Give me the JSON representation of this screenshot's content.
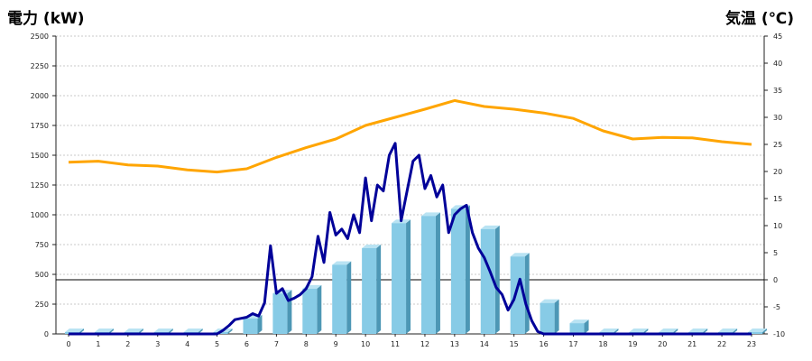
{
  "chart_data": {
    "type": "bar",
    "title_left": "電力 (kW)",
    "title_right": "気温 (℃)",
    "colors": {
      "left_title": "#1a5a96",
      "right_title": "#ee8a1e",
      "bar_front": "#87cbe6",
      "bar_side": "#4d97b5",
      "bar_top": "#b9e3f3",
      "power_line": "#000099",
      "temp_line": "#ffa500",
      "grid": "#c8c8c8"
    },
    "x": [
      "0",
      "1",
      "2",
      "3",
      "4",
      "5",
      "6",
      "7",
      "8",
      "9",
      "10",
      "11",
      "12",
      "13",
      "14",
      "15",
      "16",
      "17",
      "18",
      "19",
      "20",
      "21",
      "22",
      "23"
    ],
    "y_left": {
      "min": 0,
      "max": 2500,
      "ticks": [
        0,
        250,
        500,
        750,
        1000,
        1250,
        1500,
        1750,
        2000,
        2250,
        2500
      ]
    },
    "y_right": {
      "min": -10,
      "max": 45,
      "ticks": [
        -10,
        -5,
        0,
        5,
        10,
        15,
        20,
        25,
        30,
        35,
        40,
        45
      ]
    },
    "grid": true,
    "series": [
      {
        "kind": "bar",
        "axis": "left",
        "values": [
          0,
          0,
          0,
          0,
          0,
          0,
          130,
          340,
          380,
          580,
          720,
          930,
          990,
          1050,
          880,
          650,
          260,
          90,
          0,
          0,
          0,
          0,
          0,
          0
        ]
      },
      {
        "kind": "line",
        "axis": "left",
        "x": [
          5.0,
          5.2,
          5.4,
          5.6,
          5.8,
          6.0,
          6.2,
          6.4,
          6.6,
          6.8,
          7.0,
          7.2,
          7.4,
          7.6,
          7.8,
          8.0,
          8.2,
          8.4,
          8.6,
          8.8,
          9.0,
          9.2,
          9.4,
          9.6,
          9.8,
          10.0,
          10.2,
          10.4,
          10.6,
          10.8,
          11.0,
          11.2,
          11.4,
          11.6,
          11.8,
          12.0,
          12.2,
          12.4,
          12.6,
          12.8,
          13.0,
          13.2,
          13.4,
          13.6,
          13.8,
          14.0,
          14.2,
          14.4,
          14.6,
          14.8,
          15.0,
          15.2,
          15.4,
          15.6,
          15.8,
          16.0,
          16.2,
          16.4,
          16.6,
          16.8,
          17.0,
          17.2,
          17.4
        ],
        "values": [
          0,
          30,
          70,
          120,
          130,
          140,
          170,
          150,
          260,
          740,
          340,
          380,
          280,
          300,
          330,
          380,
          480,
          820,
          600,
          1020,
          830,
          880,
          800,
          1000,
          850,
          1310,
          950,
          1250,
          1200,
          1500,
          1600,
          950,
          1200,
          1450,
          1500,
          1220,
          1330,
          1150,
          1250,
          850,
          1000,
          1050,
          1080,
          850,
          720,
          640,
          520,
          390,
          330,
          200,
          290,
          460,
          250,
          110,
          20,
          0,
          0,
          0,
          0,
          0,
          0,
          0,
          0
        ]
      },
      {
        "kind": "line",
        "axis": "right",
        "values": [
          21.7,
          21.9,
          21.2,
          21.0,
          20.3,
          19.9,
          20.5,
          22.6,
          24.4,
          26.0,
          28.5,
          30.0,
          31.5,
          33.1,
          32.0,
          31.5,
          30.8,
          29.8,
          27.5,
          26.0,
          26.3,
          26.2,
          25.5,
          25.0
        ]
      }
    ]
  }
}
